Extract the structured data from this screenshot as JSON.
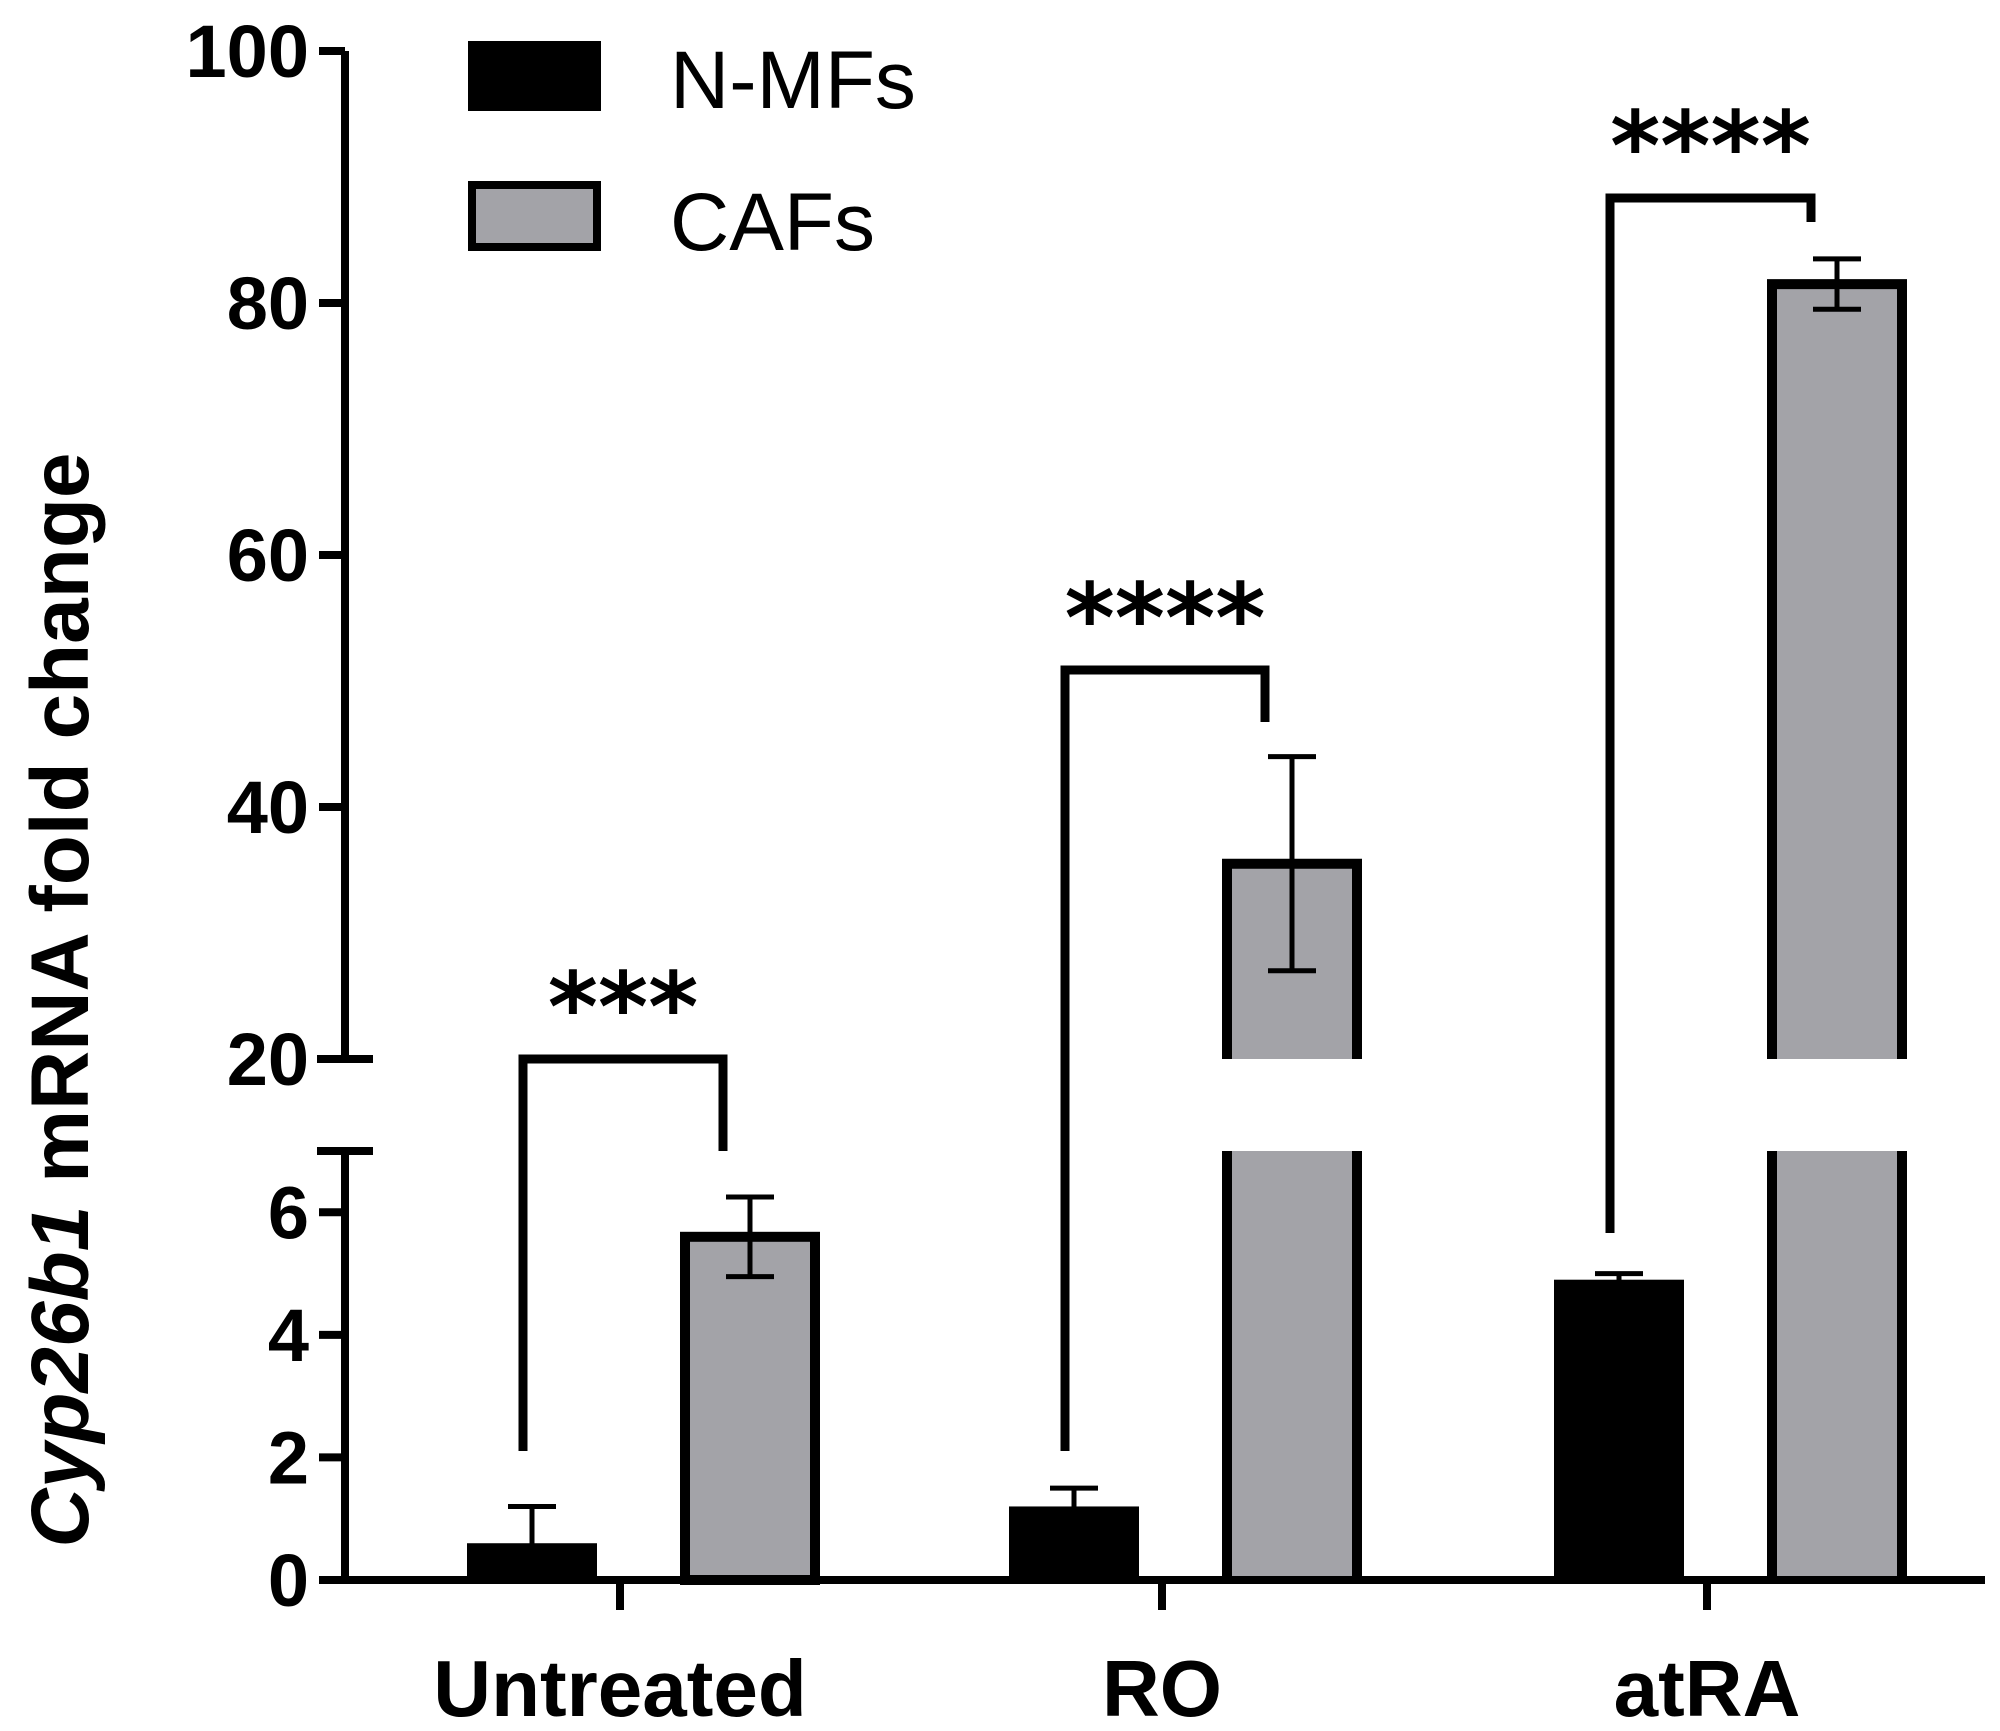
{
  "chart_data": {
    "type": "bar",
    "ylabel_italic": "Cyp26b1",
    "ylabel_rest": " mRNA fold change",
    "xlabel": "",
    "categories": [
      "Untreated",
      "RO",
      "atRA"
    ],
    "series": [
      {
        "name": "N-MFs",
        "color": "#000000",
        "values": [
          0.6,
          1.2,
          4.9
        ],
        "errors": [
          0.6,
          0.3,
          0.1
        ]
      },
      {
        "name": "CAFs",
        "color": "#a3a3a8",
        "values": [
          5.6,
          35.5,
          81.5
        ],
        "errors": [
          0.65,
          8.5,
          2.0
        ]
      }
    ],
    "y_axis": {
      "broken": true,
      "lower_segment": {
        "ylim": [
          0,
          7
        ],
        "ticks": [
          "0",
          "2",
          "4",
          "6"
        ]
      },
      "upper_segment": {
        "ylim": [
          20,
          100
        ],
        "ticks": [
          "20",
          "40",
          "60",
          "80",
          "100"
        ]
      }
    },
    "significance": [
      "***",
      "****",
      "****"
    ],
    "legend_position": "top-left",
    "grid": false
  }
}
